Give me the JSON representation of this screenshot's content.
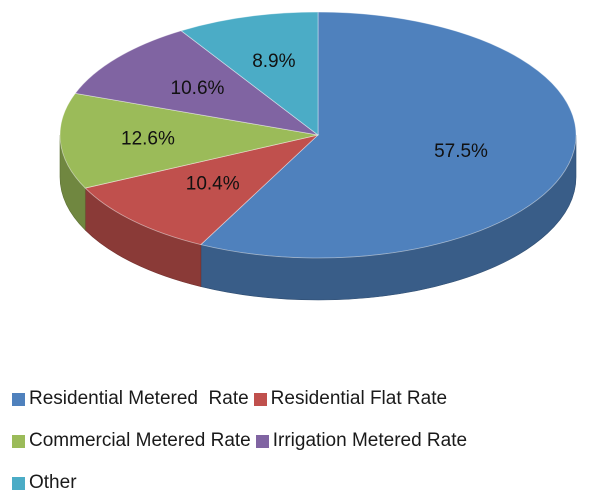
{
  "chart_data": {
    "type": "pie",
    "three_d": true,
    "title": "",
    "categories": [
      "Residential Metered  Rate",
      "Residential Flat Rate",
      "Commercial Metered Rate",
      "Irrigation Metered Rate",
      "Other"
    ],
    "values": [
      57.5,
      10.4,
      12.6,
      10.6,
      8.9
    ],
    "value_labels": [
      "57.5%",
      "10.4%",
      "12.6%",
      "10.6%",
      "8.9%"
    ],
    "colors": [
      "#4F81BD",
      "#C0504D",
      "#9BBB59",
      "#8064A2",
      "#4BACC6"
    ],
    "legend_position": "bottom"
  }
}
